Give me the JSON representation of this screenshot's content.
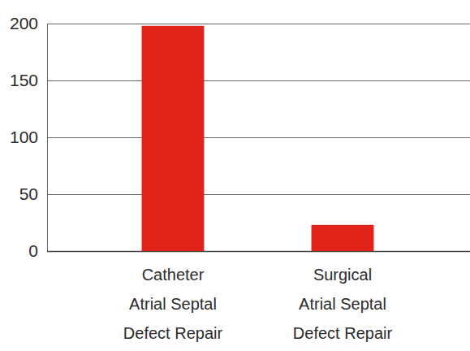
{
  "chart_data": {
    "type": "bar",
    "categories": [
      "Catheter\nAtrial Septal\nDefect Repair",
      "Surgical\nAtrial Septal\nDefect Repair"
    ],
    "values": [
      198,
      23
    ],
    "color": "#e2231a",
    "ylim": [
      0,
      200
    ],
    "yticks": [
      0,
      50,
      100,
      150,
      200
    ],
    "grid": true
  }
}
